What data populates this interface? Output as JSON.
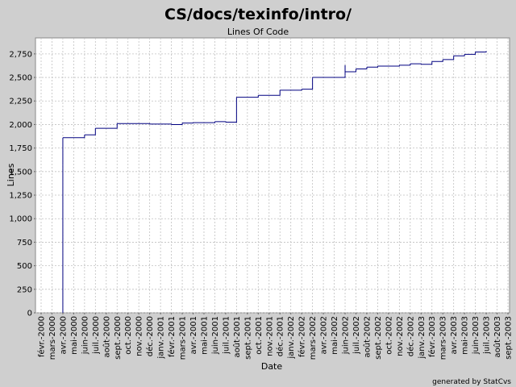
{
  "chart_data": {
    "type": "step-line",
    "title": "CS/docs/texinfo/intro/",
    "subtitle": "Lines Of Code",
    "x_label": "Date",
    "y_label": "Lines",
    "footer": "generated by StatCvs",
    "grid": true,
    "series": [
      {
        "name": "Lines",
        "color": "#000080",
        "x": [
          "2000-04",
          "2000-04",
          "2000-04",
          "2000-04",
          "2000-06",
          "2000-07",
          "2000-09",
          "2000-12",
          "2001-02",
          "2001-03",
          "2001-04",
          "2001-06",
          "2001-07",
          "2001-08",
          "2001-08",
          "2001-10",
          "2001-12",
          "2002-02",
          "2002-03",
          "2002-03",
          "2002-06",
          "2002-06",
          "2002-06",
          "2002-07",
          "2002-08",
          "2002-09",
          "2002-11",
          "2002-12",
          "2003-01",
          "2003-02",
          "2003-03",
          "2003-04",
          "2003-05",
          "2003-06",
          "2003-07"
        ],
        "values": [
          0,
          1540,
          1570,
          1860,
          1890,
          1960,
          2010,
          2005,
          2000,
          2015,
          2020,
          2030,
          2025,
          2020,
          2290,
          2310,
          2365,
          2375,
          2490,
          2500,
          2520,
          2630,
          2560,
          2590,
          2610,
          2620,
          2630,
          2645,
          2640,
          2670,
          2690,
          2730,
          2745,
          2770,
          2780
        ]
      }
    ],
    "xlim": [
      "2000-02",
      "2003-09"
    ],
    "xticks": [
      {
        "value": "2000-02",
        "label": "févr.-2000"
      },
      {
        "value": "2000-03",
        "label": "mars-2000"
      },
      {
        "value": "2000-04",
        "label": "avr.-2000"
      },
      {
        "value": "2000-05",
        "label": "mai-2000"
      },
      {
        "value": "2000-06",
        "label": "juin-2000"
      },
      {
        "value": "2000-07",
        "label": "juil.-2000"
      },
      {
        "value": "2000-08",
        "label": "août-2000"
      },
      {
        "value": "2000-09",
        "label": "sept.-2000"
      },
      {
        "value": "2000-10",
        "label": "oct.-2000"
      },
      {
        "value": "2000-11",
        "label": "nov.-2000"
      },
      {
        "value": "2000-12",
        "label": "déc.-2000"
      },
      {
        "value": "2001-01",
        "label": "janv.-2001"
      },
      {
        "value": "2001-02",
        "label": "févr.-2001"
      },
      {
        "value": "2001-03",
        "label": "mars-2001"
      },
      {
        "value": "2001-04",
        "label": "avr.-2001"
      },
      {
        "value": "2001-05",
        "label": "mai-2001"
      },
      {
        "value": "2001-06",
        "label": "juin-2001"
      },
      {
        "value": "2001-07",
        "label": "juil.-2001"
      },
      {
        "value": "2001-08",
        "label": "août-2001"
      },
      {
        "value": "2001-09",
        "label": "sept.-2001"
      },
      {
        "value": "2001-10",
        "label": "oct.-2001"
      },
      {
        "value": "2001-11",
        "label": "nov.-2001"
      },
      {
        "value": "2001-12",
        "label": "déc.-2001"
      },
      {
        "value": "2002-01",
        "label": "janv.-2002"
      },
      {
        "value": "2002-02",
        "label": "févr.-2002"
      },
      {
        "value": "2002-03",
        "label": "mars-2002"
      },
      {
        "value": "2002-04",
        "label": "avr.-2002"
      },
      {
        "value": "2002-05",
        "label": "mai-2002"
      },
      {
        "value": "2002-06",
        "label": "juin-2002"
      },
      {
        "value": "2002-07",
        "label": "juil.-2002"
      },
      {
        "value": "2002-08",
        "label": "août-2002"
      },
      {
        "value": "2002-09",
        "label": "sept.-2002"
      },
      {
        "value": "2002-10",
        "label": "oct.-2002"
      },
      {
        "value": "2002-11",
        "label": "nov.-2002"
      },
      {
        "value": "2002-12",
        "label": "déc.-2002"
      },
      {
        "value": "2003-01",
        "label": "janv.-2003"
      },
      {
        "value": "2003-02",
        "label": "févr.-2003"
      },
      {
        "value": "2003-03",
        "label": "mars-2003"
      },
      {
        "value": "2003-04",
        "label": "avr.-2003"
      },
      {
        "value": "2003-05",
        "label": "mai-2003"
      },
      {
        "value": "2003-06",
        "label": "juin-2003"
      },
      {
        "value": "2003-07",
        "label": "juil.-2003"
      },
      {
        "value": "2003-08",
        "label": "août-2003"
      },
      {
        "value": "2003-09",
        "label": "sept.-2003"
      }
    ],
    "ylim": [
      0,
      2920
    ],
    "yticks": [
      0,
      250,
      500,
      750,
      {
        "value": 1000,
        "label": "1,000"
      },
      {
        "value": 1250,
        "label": "1,250"
      },
      {
        "value": 1500,
        "label": "1,500"
      },
      {
        "value": 1750,
        "label": "1,750"
      },
      {
        "value": 2000,
        "label": "2,000"
      },
      {
        "value": 2250,
        "label": "2,250"
      },
      {
        "value": 2500,
        "label": "2,500"
      },
      {
        "value": 2750,
        "label": "2,750"
      }
    ]
  }
}
